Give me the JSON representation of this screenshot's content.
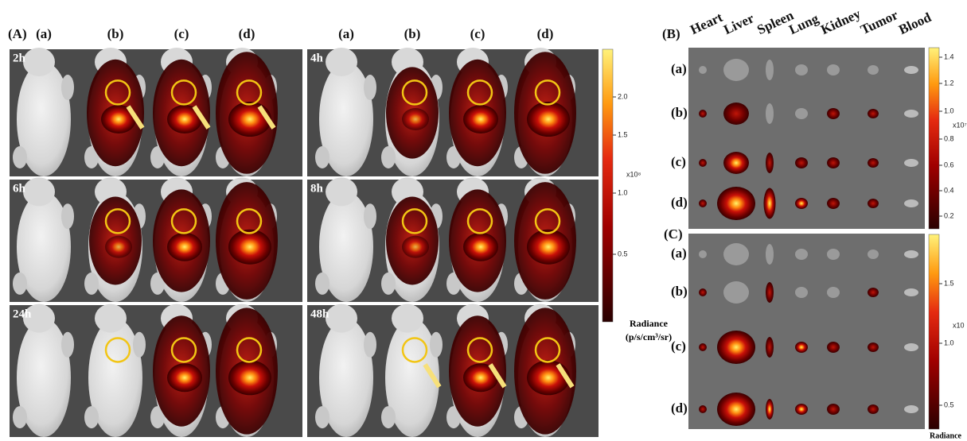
{
  "panel_a": {
    "label": "(A)",
    "groups_left": [
      "(a)",
      "(b)",
      "(c)",
      "(d)"
    ],
    "groups_right": [
      "(a)",
      "(b)",
      "(c)",
      "(d)"
    ],
    "time_points": [
      "2h",
      "4h",
      "6h",
      "8h",
      "24h",
      "48h"
    ],
    "colorbar": {
      "ticks": [
        "2.0",
        "1.5",
        "1.0",
        "0.5"
      ],
      "scale": "x10⁸",
      "title": "Radiance",
      "unit": "(p/s/cm³/sr)"
    }
  },
  "panel_b": {
    "label": "(B)",
    "organs": [
      "Heart",
      "Liver",
      "Spleen",
      "Lung",
      "Kidney",
      "Tumor",
      "Blood"
    ],
    "rows": [
      "(a)",
      "(b)",
      "(c)",
      "(d)"
    ],
    "colorbar": {
      "ticks": [
        "1.4",
        "1.2",
        "1.0",
        "0.8",
        "0.6",
        "0.4",
        "0.2"
      ],
      "scale": "x10⁷"
    }
  },
  "panel_c": {
    "label": "(C)",
    "rows": [
      "(a)",
      "(b)",
      "(c)",
      "(d)"
    ],
    "colorbar": {
      "ticks": [
        "1.5",
        "1.0",
        "0.5"
      ],
      "scale": "x10",
      "title": "Radiance"
    }
  }
}
